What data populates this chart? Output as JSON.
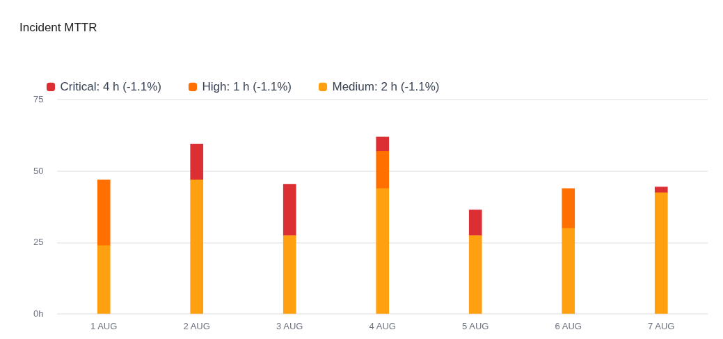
{
  "chart_data": {
    "type": "bar",
    "title": "Incident MTTR",
    "stacked": true,
    "categories": [
      "1 AUG",
      "2 AUG",
      "3 AUG",
      "4 AUG",
      "5 AUG",
      "6 AUG",
      "7 AUG"
    ],
    "series": [
      {
        "name": "Medium: 2 h (-1.1%)",
        "color": "#ffa010",
        "values": [
          24,
          47,
          27.5,
          44,
          27.5,
          30,
          42.5
        ]
      },
      {
        "name": "High: 1 h (-1.1%)",
        "color": "#ff7000",
        "values": [
          23,
          null,
          null,
          13,
          null,
          14,
          null
        ]
      },
      {
        "name": "Critical: 4 h (-1.1%)",
        "color": "#dc2f33",
        "values": [
          null,
          12.5,
          18,
          5,
          9,
          null,
          2
        ]
      }
    ],
    "ylim": [
      0,
      75
    ],
    "yticks": [
      {
        "value": 0,
        "label": "0h"
      },
      25,
      50,
      75
    ],
    "grid": "y",
    "legend": "top left"
  }
}
